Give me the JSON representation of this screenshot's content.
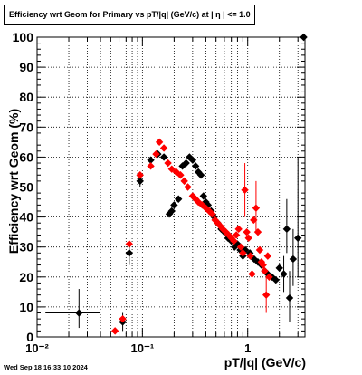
{
  "title": "Efficiency wrt Geom for Primary vs pT/|q| (GeV/c) at |  η | <= 1.0",
  "timestamp": "Wed Sep 18 16:33:10 2024",
  "colors": {
    "series_a": "#000000",
    "series_b": "#ff0000",
    "grid": "#000000"
  },
  "chart_data": {
    "type": "scatter",
    "title": "Efficiency wrt Geom for Primary vs pT/|q| (GeV/c) at |  η | <= 1.0",
    "xlabel": "pT/|q| (GeV/c)",
    "ylabel": "Efficiency wrt Geom (%)",
    "xscale": "log",
    "xlim": [
      0.01,
      3.5
    ],
    "ylim": [
      0,
      100
    ],
    "x_tick_labels": [
      "10⁻²",
      "10⁻¹",
      "1"
    ],
    "y_tick_labels": [
      "0",
      "10",
      "20",
      "30",
      "40",
      "50",
      "60",
      "70",
      "80",
      "90",
      "100"
    ],
    "grid": true,
    "series": [
      {
        "color": "#000000",
        "points": [
          {
            "x": 0.025,
            "y": 8,
            "ex": [
              0.012,
              0.04
            ],
            "ey": [
              3,
              16
            ]
          },
          {
            "x": 0.065,
            "y": 5,
            "ey": [
              2,
              8
            ]
          },
          {
            "x": 0.075,
            "y": 28,
            "ey": [
              24,
              31
            ]
          },
          {
            "x": 0.095,
            "y": 52,
            "ey": [
              50,
              54
            ]
          },
          {
            "x": 0.12,
            "y": 59
          },
          {
            "x": 0.14,
            "y": 61
          },
          {
            "x": 0.16,
            "y": 60
          },
          {
            "x": 0.18,
            "y": 41
          },
          {
            "x": 0.19,
            "y": 42
          },
          {
            "x": 0.2,
            "y": 44
          },
          {
            "x": 0.22,
            "y": 46
          },
          {
            "x": 0.24,
            "y": 57
          },
          {
            "x": 0.26,
            "y": 58
          },
          {
            "x": 0.28,
            "y": 60
          },
          {
            "x": 0.3,
            "y": 59
          },
          {
            "x": 0.32,
            "y": 57
          },
          {
            "x": 0.34,
            "y": 55
          },
          {
            "x": 0.36,
            "y": 54
          },
          {
            "x": 0.38,
            "y": 47
          },
          {
            "x": 0.4,
            "y": 45
          },
          {
            "x": 0.42,
            "y": 44
          },
          {
            "x": 0.45,
            "y": 42
          },
          {
            "x": 0.48,
            "y": 40
          },
          {
            "x": 0.52,
            "y": 38
          },
          {
            "x": 0.56,
            "y": 36
          },
          {
            "x": 0.6,
            "y": 35
          },
          {
            "x": 0.65,
            "y": 33
          },
          {
            "x": 0.7,
            "y": 32
          },
          {
            "x": 0.75,
            "y": 30
          },
          {
            "x": 0.8,
            "y": 31
          },
          {
            "x": 0.85,
            "y": 29
          },
          {
            "x": 0.9,
            "y": 27
          },
          {
            "x": 0.95,
            "y": 29
          },
          {
            "x": 1.05,
            "y": 28
          },
          {
            "x": 1.15,
            "y": 26
          },
          {
            "x": 1.25,
            "y": 25
          },
          {
            "x": 1.35,
            "y": 24
          },
          {
            "x": 1.45,
            "y": 22
          },
          {
            "x": 1.55,
            "y": 21
          },
          {
            "x": 1.7,
            "y": 20
          },
          {
            "x": 1.85,
            "y": 19
          },
          {
            "x": 2.0,
            "y": 23
          },
          {
            "x": 2.2,
            "y": 21,
            "ey": [
              15,
              27
            ]
          },
          {
            "x": 2.35,
            "y": 36,
            "ey": [
              28,
              46
            ]
          },
          {
            "x": 2.5,
            "y": 13,
            "ey": [
              5,
              22
            ]
          },
          {
            "x": 2.7,
            "y": 26,
            "ey": [
              17,
              36
            ]
          },
          {
            "x": 3.0,
            "y": 33,
            "ey": [
              20,
              60
            ]
          },
          {
            "x": 3.4,
            "y": 100
          }
        ]
      },
      {
        "color": "#ff0000",
        "points": [
          {
            "x": 0.055,
            "y": 2
          },
          {
            "x": 0.065,
            "y": 6
          },
          {
            "x": 0.075,
            "y": 31
          },
          {
            "x": 0.095,
            "y": 54
          },
          {
            "x": 0.12,
            "y": 57
          },
          {
            "x": 0.135,
            "y": 61
          },
          {
            "x": 0.145,
            "y": 65
          },
          {
            "x": 0.16,
            "y": 63
          },
          {
            "x": 0.175,
            "y": 58
          },
          {
            "x": 0.19,
            "y": 56
          },
          {
            "x": 0.21,
            "y": 55
          },
          {
            "x": 0.23,
            "y": 54
          },
          {
            "x": 0.25,
            "y": 52
          },
          {
            "x": 0.27,
            "y": 50
          },
          {
            "x": 0.3,
            "y": 47
          },
          {
            "x": 0.32,
            "y": 46
          },
          {
            "x": 0.34,
            "y": 45
          },
          {
            "x": 0.37,
            "y": 44
          },
          {
            "x": 0.4,
            "y": 43
          },
          {
            "x": 0.43,
            "y": 42
          },
          {
            "x": 0.46,
            "y": 41
          },
          {
            "x": 0.49,
            "y": 39
          },
          {
            "x": 0.52,
            "y": 38
          },
          {
            "x": 0.55,
            "y": 37
          },
          {
            "x": 0.58,
            "y": 36
          },
          {
            "x": 0.62,
            "y": 35
          },
          {
            "x": 0.66,
            "y": 34
          },
          {
            "x": 0.7,
            "y": 33
          },
          {
            "x": 0.74,
            "y": 32
          },
          {
            "x": 0.78,
            "y": 34
          },
          {
            "x": 0.82,
            "y": 36
          },
          {
            "x": 0.86,
            "y": 30
          },
          {
            "x": 0.9,
            "y": 28
          },
          {
            "x": 0.94,
            "y": 49,
            "ey": [
              40,
              58
            ]
          },
          {
            "x": 0.98,
            "y": 35
          },
          {
            "x": 1.02,
            "y": 33
          },
          {
            "x": 1.06,
            "y": 27
          },
          {
            "x": 1.1,
            "y": 21
          },
          {
            "x": 1.14,
            "y": 39
          },
          {
            "x": 1.2,
            "y": 43,
            "ey": [
              35,
              52
            ]
          },
          {
            "x": 1.25,
            "y": 35
          },
          {
            "x": 1.3,
            "y": 29
          },
          {
            "x": 1.35,
            "y": 25
          },
          {
            "x": 1.4,
            "y": 24
          },
          {
            "x": 1.45,
            "y": 22
          },
          {
            "x": 1.5,
            "y": 14,
            "ey": [
              8,
              20
            ]
          },
          {
            "x": 1.55,
            "y": 27
          },
          {
            "x": 1.6,
            "y": 20
          }
        ]
      }
    ]
  }
}
